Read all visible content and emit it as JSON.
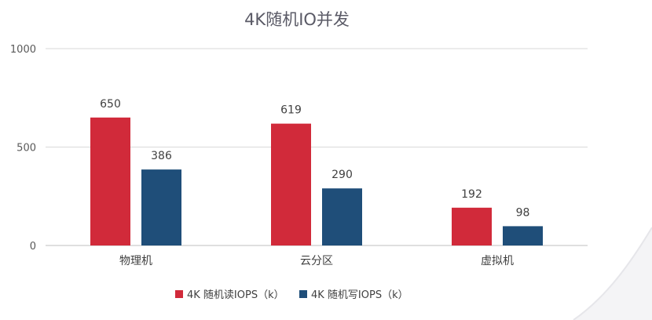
{
  "chart_data": {
    "type": "bar",
    "title": "4K随机IO并发",
    "categories": [
      "物理机",
      "云分区",
      "虚拟机"
    ],
    "series": [
      {
        "name": "4K 随机读IOPS（k）",
        "values": [
          650,
          619,
          192
        ],
        "color": "#d12a3a"
      },
      {
        "name": "4K 随机写IOPS（k）",
        "values": [
          386,
          290,
          98
        ],
        "color": "#1f4e79"
      }
    ],
    "ylim": [
      0,
      1000
    ],
    "yticks": [
      0,
      500,
      1000
    ],
    "grid": true,
    "legend": "bottom"
  }
}
